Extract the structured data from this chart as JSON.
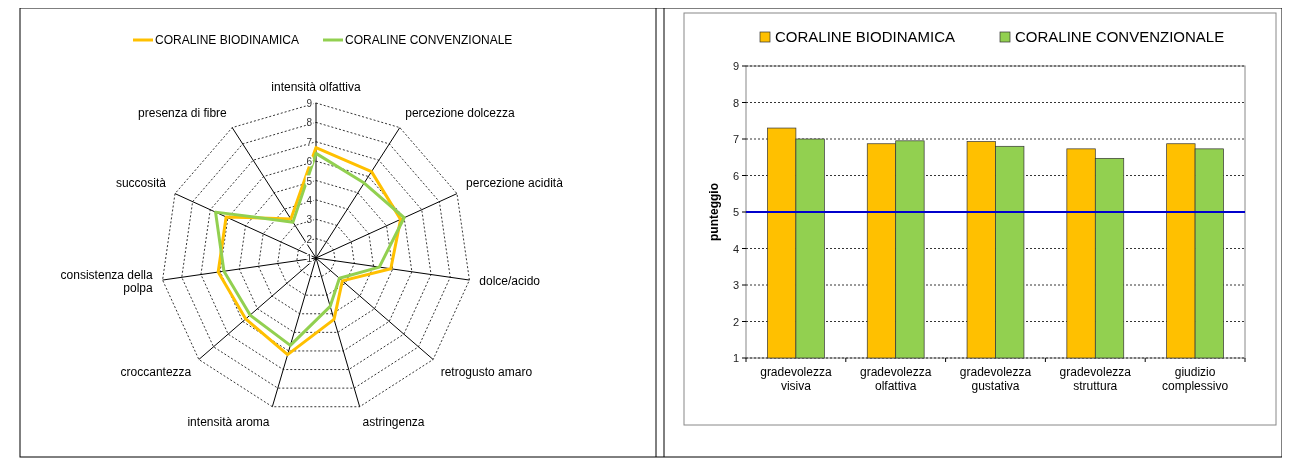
{
  "chart_data": [
    {
      "type": "radar",
      "categories": [
        "intensità olfattiva",
        "percezione dolcezza",
        "percezione acidità",
        "dolce/acido",
        "retrogusto amaro",
        "astringenza",
        "intensità aroma",
        "croccantezza",
        "consistenza della polpa",
        "succosità",
        "presenza di fibre"
      ],
      "series": [
        {
          "name": "CORALINE BIODINAMICA",
          "color": "#ffc000",
          "values": [
            6.7,
            6.3,
            5.8,
            4.9,
            2.8,
            4.3,
            6.2,
            5.8,
            6.1,
            6.1,
            3.4
          ]
        },
        {
          "name": "CORALINE CONVENZIONALE",
          "color": "#92d050",
          "values": [
            6.4,
            5.6,
            6.0,
            4.3,
            2.6,
            3.6,
            5.7,
            5.5,
            5.8,
            6.7,
            3.2
          ]
        }
      ],
      "ylim": [
        1,
        9
      ],
      "yticks": [
        1,
        2,
        3,
        4,
        5,
        6,
        7,
        8,
        9
      ],
      "grid": true,
      "legend": "top"
    },
    {
      "type": "bar",
      "categories": [
        "gradevolezza visiva",
        "gradevolezza olfattiva",
        "gradevolezza gustativa",
        "gradevolezza struttura",
        "giudizio complessivo"
      ],
      "series": [
        {
          "name": "CORALINE BIODINAMICA",
          "color": "#ffc000",
          "values": [
            7.3,
            6.87,
            6.93,
            6.73,
            6.87
          ]
        },
        {
          "name": "CORALINE CONVENZIONALE",
          "color": "#92d050",
          "values": [
            7.0,
            6.95,
            6.8,
            6.47,
            6.73
          ]
        }
      ],
      "ylabel": "punteggio",
      "ylim": [
        1,
        9
      ],
      "yticks": [
        1,
        2,
        3,
        4,
        5,
        6,
        7,
        8,
        9
      ],
      "grid": "y",
      "legend": "top",
      "ref_lines": [
        {
          "axis": "y",
          "value": 5,
          "color": "#0000cc"
        }
      ]
    }
  ]
}
